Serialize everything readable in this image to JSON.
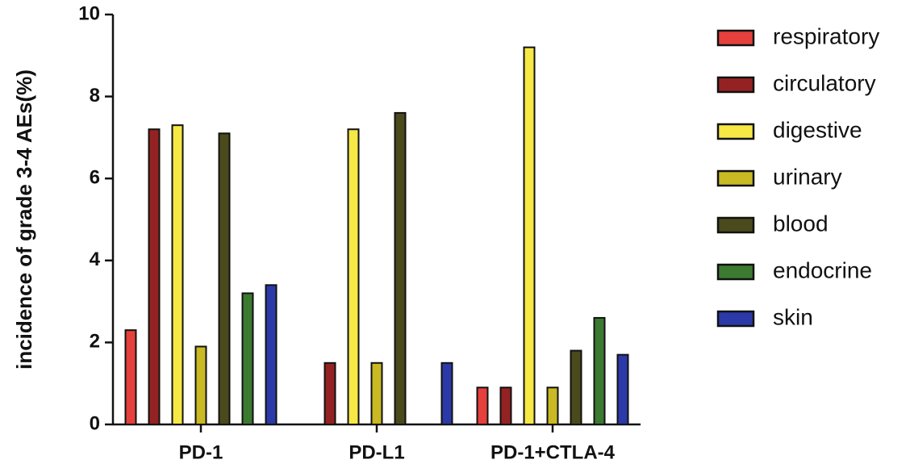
{
  "chart_data": {
    "type": "bar",
    "y_label": "incidence of grade 3-4 AEs(%)",
    "categories": [
      "PD-1",
      "PD-L1",
      "PD-1+CTLA-4"
    ],
    "series": [
      {
        "name": "respiratory",
        "color": "#e5403c",
        "values": [
          2.3,
          0,
          0.9
        ]
      },
      {
        "name": "circulatory",
        "color": "#952222",
        "values": [
          7.2,
          1.5,
          0.9
        ]
      },
      {
        "name": "digestive",
        "color": "#f6e845",
        "values": [
          7.3,
          7.2,
          9.2
        ]
      },
      {
        "name": "urinary",
        "color": "#c9b922",
        "values": [
          1.9,
          1.5,
          0.9
        ]
      },
      {
        "name": "blood",
        "color": "#4b4a1c",
        "values": [
          7.1,
          7.6,
          1.8
        ]
      },
      {
        "name": "endocrine",
        "color": "#3b7a30",
        "values": [
          3.2,
          0,
          2.6
        ]
      },
      {
        "name": "skin",
        "color": "#2b3aa8",
        "values": [
          3.4,
          1.5,
          1.7
        ]
      }
    ],
    "ylim": [
      0,
      10
    ],
    "yticks": [
      0,
      2,
      4,
      6,
      8,
      10
    ],
    "legend": "right"
  }
}
